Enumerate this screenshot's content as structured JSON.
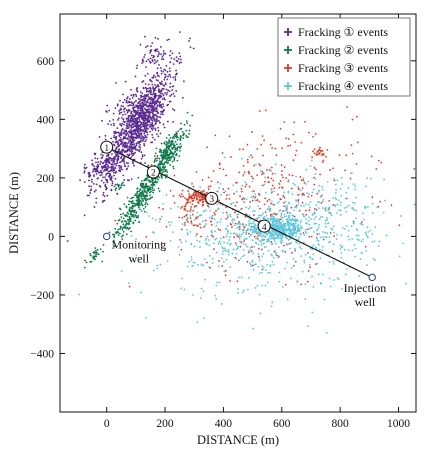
{
  "chart_data": {
    "type": "scatter",
    "xlabel": "DISTANCE (m)",
    "ylabel": "DISTANCE (m)",
    "xlim": [
      -160,
      1060
    ],
    "ylim": [
      -600,
      760
    ],
    "x_ticks": [
      0,
      200,
      400,
      600,
      800,
      1000
    ],
    "y_ticks": [
      -400,
      -200,
      0,
      200,
      400,
      600
    ],
    "x_tick_labels": [
      "0",
      "200",
      "400",
      "600",
      "800",
      "1000"
    ],
    "y_tick_labels": [
      "−400",
      "−200",
      "0",
      "200",
      "400",
      "600"
    ],
    "grid": false,
    "legend_position": "top-right",
    "series": [
      {
        "name": "Fracking ① events",
        "color": "#5b2a91",
        "marker": "+",
        "clusters": [
          {
            "cx": 110,
            "cy": 380,
            "sx": 115,
            "sy": 28,
            "angle": 60,
            "n": 1000
          },
          {
            "cx": 100,
            "cy": 410,
            "sx": 60,
            "sy": 45,
            "angle": 60,
            "n": 300
          },
          {
            "cx": -15,
            "cy": 240,
            "sx": 40,
            "sy": 20,
            "angle": 40,
            "n": 150
          },
          {
            "cx": 160,
            "cy": 620,
            "sx": 30,
            "sy": 25,
            "angle": 40,
            "n": 60
          }
        ]
      },
      {
        "name": "Fracking ② events",
        "color": "#0f7a4a",
        "marker": "+",
        "clusters": [
          {
            "cx": 140,
            "cy": 170,
            "sx": 100,
            "sy": 15,
            "angle": 58,
            "n": 550
          },
          {
            "cx": 210,
            "cy": 280,
            "sx": 30,
            "sy": 18,
            "angle": 45,
            "n": 80
          },
          {
            "cx": 240,
            "cy": 340,
            "sx": 25,
            "sy": 10,
            "angle": 40,
            "n": 40
          },
          {
            "cx": -40,
            "cy": -60,
            "sx": 25,
            "sy": 8,
            "angle": 50,
            "n": 30
          },
          {
            "cx": 40,
            "cy": 170,
            "sx": 10,
            "sy": 6,
            "angle": 40,
            "n": 15
          }
        ]
      },
      {
        "name": "Fracking ③ events",
        "color": "#d9402b",
        "marker": "+",
        "clusters": [
          {
            "cx": 320,
            "cy": 135,
            "sx": 22,
            "sy": 12,
            "angle": 0,
            "n": 110
          },
          {
            "cx": 280,
            "cy": 80,
            "sx": 40,
            "sy": 50,
            "angle": 0,
            "n": 60
          },
          {
            "cx": 550,
            "cy": 120,
            "sx": 170,
            "sy": 120,
            "angle": 10,
            "n": 380
          },
          {
            "cx": 730,
            "cy": 285,
            "sx": 12,
            "sy": 10,
            "angle": 0,
            "n": 25
          }
        ]
      },
      {
        "name": "Fracking ④ events",
        "color": "#5cc7dd",
        "marker": "+",
        "clusters": [
          {
            "cx": 580,
            "cy": 25,
            "sx": 50,
            "sy": 18,
            "angle": 0,
            "n": 450
          },
          {
            "cx": 540,
            "cy": 5,
            "sx": 180,
            "sy": 100,
            "angle": 5,
            "n": 650
          },
          {
            "cx": 760,
            "cy": 70,
            "sx": 100,
            "sy": 70,
            "angle": 0,
            "n": 150
          }
        ]
      }
    ],
    "well_path": {
      "points": [
        [
          0,
          305
        ],
        [
          160,
          220
        ],
        [
          360,
          130
        ],
        [
          540,
          35
        ],
        [
          910,
          -140
        ]
      ],
      "stage_labels": [
        "1",
        "2",
        "3",
        "4"
      ]
    },
    "monitoring_well": {
      "point": [
        0,
        0
      ],
      "label_line1": "Monitoring",
      "label_line2": "well",
      "label_x": 110,
      "label_y": -42
    },
    "injection_well": {
      "point": [
        910,
        -140
      ],
      "label_line1": "Injection",
      "label_line2": "well",
      "label_x": 885,
      "label_y": -190
    }
  }
}
